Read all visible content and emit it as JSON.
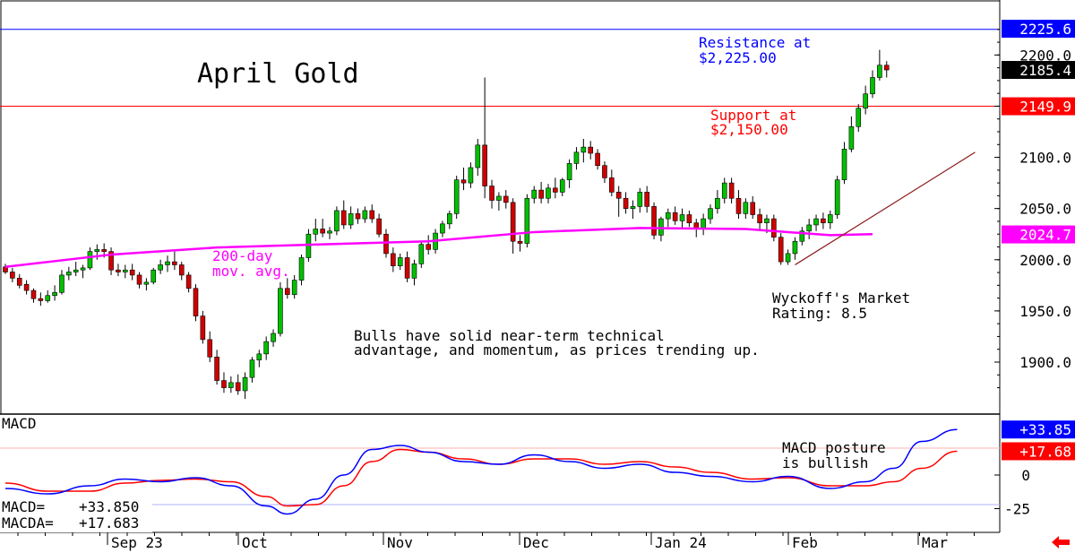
{
  "chart_data": [
    {
      "type": "candlestick",
      "title": "April Gold",
      "ylim": [
        1860,
        2235
      ],
      "y_ticks": [
        "2200.0",
        "2150.0",
        "2100.0",
        "2050.0",
        "2000.0",
        "1950.0",
        "1900.0"
      ],
      "x_ticks": [
        "Sep 23",
        "Oct",
        "Nov",
        "Dec",
        "Jan 24",
        "Feb",
        "Mar"
      ],
      "colors": {
        "up": "#00c000",
        "down": "#d00000",
        "ma": "#ff00ff",
        "resistance": "#0000ff",
        "support": "#ff0000",
        "trendline": "#8b1a1a"
      },
      "price_tags": [
        {
          "label": "2225.6",
          "value": 2225.6,
          "bg": "#0000ff"
        },
        {
          "label": "2185.4",
          "value": 2185.4,
          "bg": "#000000"
        },
        {
          "label": "2149.9",
          "value": 2149.9,
          "bg": "#ff0000"
        },
        {
          "label": "2024.7",
          "value": 2024.7,
          "bg": "#ff00ff"
        }
      ],
      "resistance": {
        "value": 2225,
        "text_1": "Resistance at",
        "text_2": "$2,225.00"
      },
      "support": {
        "value": 2150,
        "text_1": "Support at",
        "text_2": "$2,150.00"
      },
      "ma_label_1": "200-day",
      "ma_label_2": "mov. avg.",
      "rating_1": "Wyckoff's Market",
      "rating_2": "Rating: 8.5",
      "comment_1": "Bulls have solid near-term technical",
      "comment_2": "advantage, and momentum, as prices trending up.",
      "ohlc": [
        [
          1993,
          1996,
          1986,
          1988
        ],
        [
          1988,
          1992,
          1978,
          1982
        ],
        [
          1982,
          1986,
          1972,
          1975
        ],
        [
          1976,
          1980,
          1966,
          1970
        ],
        [
          1970,
          1972,
          1958,
          1962
        ],
        [
          1962,
          1968,
          1955,
          1960
        ],
        [
          1960,
          1970,
          1958,
          1965
        ],
        [
          1965,
          1975,
          1960,
          1968
        ],
        [
          1968,
          1990,
          1966,
          1985
        ],
        [
          1985,
          1993,
          1980,
          1988
        ],
        [
          1988,
          1998,
          1984,
          1990
        ],
        [
          1990,
          1995,
          1982,
          1992
        ],
        [
          1992,
          2012,
          1990,
          2008
        ],
        [
          2008,
          2015,
          2000,
          2010
        ],
        [
          2010,
          2016,
          2002,
          2008
        ],
        [
          2008,
          2012,
          1985,
          1990
        ],
        [
          1990,
          1996,
          1984,
          1988
        ],
        [
          1988,
          1995,
          1982,
          1990
        ],
        [
          1990,
          1996,
          1980,
          1985
        ],
        [
          1985,
          1988,
          1972,
          1976
        ],
        [
          1976,
          1982,
          1970,
          1978
        ],
        [
          1978,
          1992,
          1976,
          1990
        ],
        [
          1990,
          2000,
          1986,
          1995
        ],
        [
          1995,
          2004,
          1988,
          1998
        ],
        [
          1998,
          2008,
          1990,
          1995
        ],
        [
          1995,
          1998,
          1980,
          1985
        ],
        [
          1985,
          1988,
          1968,
          1972
        ],
        [
          1972,
          1976,
          1940,
          1945
        ],
        [
          1945,
          1950,
          1918,
          1922
        ],
        [
          1922,
          1930,
          1900,
          1905
        ],
        [
          1905,
          1912,
          1878,
          1882
        ],
        [
          1882,
          1890,
          1870,
          1875
        ],
        [
          1875,
          1886,
          1870,
          1880
        ],
        [
          1880,
          1888,
          1868,
          1872
        ],
        [
          1872,
          1890,
          1864,
          1885
        ],
        [
          1885,
          1905,
          1880,
          1902
        ],
        [
          1902,
          1912,
          1895,
          1908
        ],
        [
          1908,
          1925,
          1902,
          1920
        ],
        [
          1920,
          1932,
          1915,
          1928
        ],
        [
          1928,
          1978,
          1925,
          1972
        ],
        [
          1972,
          1982,
          1962,
          1966
        ],
        [
          1966,
          1985,
          1962,
          1980
        ],
        [
          1980,
          2005,
          1975,
          2002
        ],
        [
          2002,
          2030,
          1998,
          2025
        ],
        [
          2025,
          2040,
          2018,
          2030
        ],
        [
          2030,
          2040,
          2022,
          2026
        ],
        [
          2026,
          2032,
          2020,
          2028
        ],
        [
          2028,
          2052,
          2024,
          2048
        ],
        [
          2048,
          2058,
          2030,
          2034
        ],
        [
          2034,
          2052,
          2030,
          2045
        ],
        [
          2045,
          2050,
          2035,
          2040
        ],
        [
          2040,
          2052,
          2036,
          2048
        ],
        [
          2048,
          2054,
          2036,
          2040
        ],
        [
          2040,
          2045,
          2022,
          2025
        ],
        [
          2025,
          2030,
          2002,
          2006
        ],
        [
          2006,
          2012,
          1988,
          1994
        ],
        [
          1994,
          2006,
          1990,
          2002
        ],
        [
          2002,
          2008,
          1978,
          1982
        ],
        [
          1982,
          2000,
          1975,
          1996
        ],
        [
          1996,
          2018,
          1992,
          2015
        ],
        [
          2015,
          2024,
          2005,
          2010
        ],
        [
          2010,
          2030,
          2006,
          2026
        ],
        [
          2026,
          2038,
          2022,
          2035
        ],
        [
          2035,
          2048,
          2030,
          2045
        ],
        [
          2045,
          2082,
          2040,
          2078
        ],
        [
          2078,
          2090,
          2068,
          2075
        ],
        [
          2075,
          2095,
          2070,
          2090
        ],
        [
          2090,
          2118,
          2082,
          2112
        ],
        [
          2112,
          2178,
          2060,
          2072
        ],
        [
          2072,
          2078,
          2050,
          2058
        ],
        [
          2058,
          2066,
          2048,
          2062
        ],
        [
          2062,
          2068,
          2050,
          2056
        ],
        [
          2056,
          2060,
          2006,
          2018
        ],
        [
          2018,
          2024,
          2008,
          2016
        ],
        [
          2016,
          2064,
          2012,
          2060
        ],
        [
          2060,
          2072,
          2055,
          2068
        ],
        [
          2068,
          2076,
          2055,
          2060
        ],
        [
          2060,
          2074,
          2055,
          2070
        ],
        [
          2070,
          2080,
          2060,
          2066
        ],
        [
          2066,
          2080,
          2062,
          2078
        ],
        [
          2078,
          2098,
          2070,
          2094
        ],
        [
          2094,
          2110,
          2088,
          2105
        ],
        [
          2105,
          2118,
          2095,
          2110
        ],
        [
          2110,
          2116,
          2098,
          2104
        ],
        [
          2104,
          2108,
          2088,
          2092
        ],
        [
          2092,
          2096,
          2075,
          2080
        ],
        [
          2080,
          2088,
          2062,
          2066
        ],
        [
          2066,
          2072,
          2042,
          2060
        ],
        [
          2060,
          2066,
          2045,
          2050
        ],
        [
          2050,
          2058,
          2040,
          2052
        ],
        [
          2052,
          2070,
          2046,
          2066
        ],
        [
          2066,
          2072,
          2046,
          2052
        ],
        [
          2052,
          2056,
          2020,
          2024
        ],
        [
          2024,
          2042,
          2018,
          2040
        ],
        [
          2040,
          2050,
          2032,
          2046
        ],
        [
          2046,
          2052,
          2034,
          2038
        ],
        [
          2038,
          2050,
          2030,
          2044
        ],
        [
          2044,
          2048,
          2032,
          2036
        ],
        [
          2036,
          2040,
          2022,
          2030
        ],
        [
          2030,
          2045,
          2024,
          2040
        ],
        [
          2040,
          2054,
          2035,
          2050
        ],
        [
          2050,
          2068,
          2045,
          2060
        ],
        [
          2060,
          2080,
          2055,
          2075
        ],
        [
          2075,
          2080,
          2055,
          2060
        ],
        [
          2060,
          2068,
          2040,
          2045
        ],
        [
          2045,
          2060,
          2040,
          2056
        ],
        [
          2056,
          2062,
          2040,
          2044
        ],
        [
          2044,
          2050,
          2030,
          2036
        ],
        [
          2036,
          2044,
          2026,
          2040
        ],
        [
          2040,
          2044,
          2018,
          2022
        ],
        [
          2022,
          2026,
          1995,
          1998
        ],
        [
          1998,
          2010,
          1995,
          2006
        ],
        [
          2006,
          2022,
          2000,
          2018
        ],
        [
          2018,
          2032,
          2014,
          2028
        ],
        [
          2028,
          2040,
          2020,
          2034
        ],
        [
          2034,
          2044,
          2028,
          2040
        ],
        [
          2040,
          2046,
          2030,
          2036
        ],
        [
          2036,
          2048,
          2030,
          2044
        ],
        [
          2044,
          2082,
          2040,
          2078
        ],
        [
          2078,
          2115,
          2074,
          2108
        ],
        [
          2108,
          2140,
          2105,
          2130
        ],
        [
          2130,
          2152,
          2125,
          2148
        ],
        [
          2148,
          2170,
          2142,
          2162
        ],
        [
          2162,
          2185,
          2158,
          2178
        ],
        [
          2178,
          2205,
          2175,
          2190
        ],
        [
          2190,
          2194,
          2178,
          2185.4
        ]
      ],
      "ma_points": [
        [
          0,
          1993
        ],
        [
          15,
          2005
        ],
        [
          30,
          2012
        ],
        [
          45,
          2015
        ],
        [
          60,
          2018
        ],
        [
          75,
          2027
        ],
        [
          90,
          2031
        ],
        [
          105,
          2030
        ],
        [
          117,
          2024
        ],
        [
          123,
          2025
        ]
      ],
      "trendline": [
        [
          112,
          1995
        ],
        [
          135,
          2094
        ]
      ]
    },
    {
      "type": "line",
      "title": "MACD",
      "ylim": [
        -35,
        50
      ],
      "y_ticks": [
        "-25",
        "0"
      ],
      "legend": [
        {
          "label": "MACD=",
          "value": "+33.850"
        },
        {
          "label": "MACDA=",
          "value": "+17.683"
        }
      ],
      "price_tags": [
        {
          "label": "+33.85",
          "value": 33.85,
          "bg": "#0000ff"
        },
        {
          "label": "+17.68",
          "value": 17.68,
          "bg": "#ff0000"
        }
      ],
      "note_1": "MACD posture",
      "note_2": "is bullish",
      "colors": {
        "macd": "#0000ff",
        "signal": "#ff0000",
        "ref_top": "#ffb0b0",
        "ref_bottom": "#b0b0ff"
      },
      "macd": [
        [
          0,
          -10
        ],
        [
          6,
          -14
        ],
        [
          12,
          -8
        ],
        [
          17,
          -3
        ],
        [
          22,
          -5
        ],
        [
          27,
          -2
        ],
        [
          32,
          -8
        ],
        [
          37,
          -23
        ],
        [
          40,
          -29
        ],
        [
          44,
          -18
        ],
        [
          48,
          0
        ],
        [
          52,
          19
        ],
        [
          56,
          22
        ],
        [
          60,
          17
        ],
        [
          65,
          10
        ],
        [
          70,
          8
        ],
        [
          75,
          15
        ],
        [
          80,
          10
        ],
        [
          85,
          5
        ],
        [
          90,
          8
        ],
        [
          95,
          2
        ],
        [
          100,
          -1
        ],
        [
          106,
          -5
        ],
        [
          111,
          -1
        ],
        [
          117,
          -10
        ],
        [
          122,
          -5
        ],
        [
          126,
          5
        ],
        [
          130,
          25
        ],
        [
          135,
          33.85
        ]
      ],
      "signal": [
        [
          0,
          -6
        ],
        [
          6,
          -12
        ],
        [
          12,
          -12
        ],
        [
          17,
          -6
        ],
        [
          22,
          -4
        ],
        [
          27,
          -3
        ],
        [
          32,
          -5
        ],
        [
          37,
          -16
        ],
        [
          40,
          -23
        ],
        [
          44,
          -22
        ],
        [
          48,
          -8
        ],
        [
          52,
          10
        ],
        [
          56,
          19
        ],
        [
          60,
          17
        ],
        [
          65,
          12
        ],
        [
          70,
          8
        ],
        [
          75,
          12
        ],
        [
          80,
          12
        ],
        [
          85,
          8
        ],
        [
          90,
          10
        ],
        [
          95,
          6
        ],
        [
          100,
          2
        ],
        [
          106,
          -3
        ],
        [
          111,
          -2
        ],
        [
          117,
          -8
        ],
        [
          122,
          -8
        ],
        [
          126,
          -5
        ],
        [
          130,
          5
        ],
        [
          135,
          17.683
        ]
      ]
    }
  ],
  "nav": {
    "back_icon": "left-arrow-icon",
    "color": "#ff0000"
  }
}
